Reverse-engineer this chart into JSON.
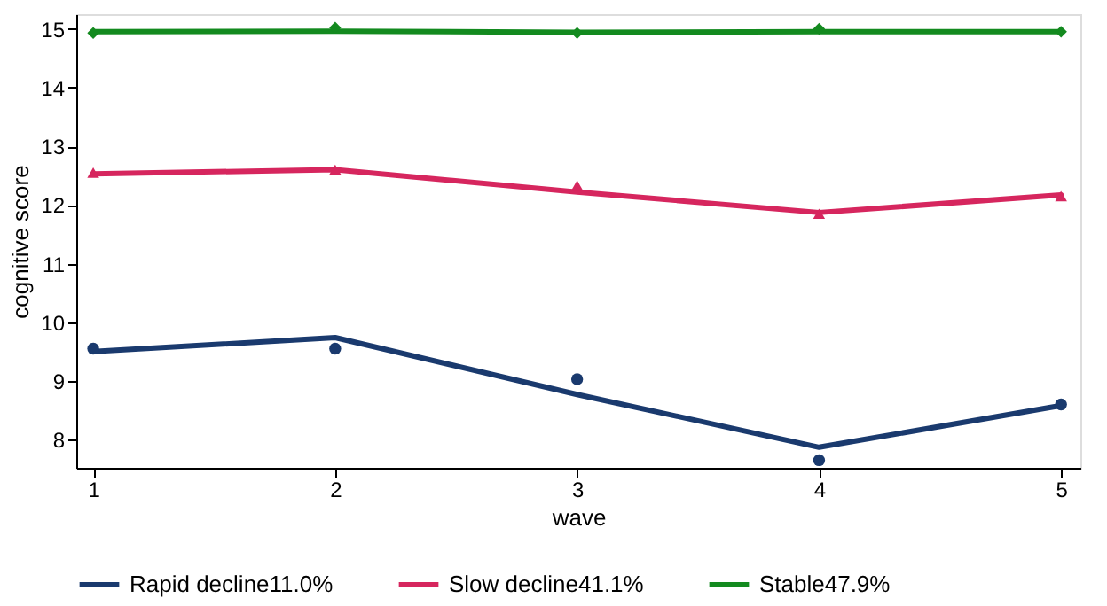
{
  "chart_data": {
    "type": "line",
    "xlabel": "wave",
    "ylabel": "cognitive score",
    "x": [
      1,
      2,
      3,
      4,
      5
    ],
    "xlim": [
      0.93,
      5.08
    ],
    "xticks": [
      1,
      2,
      3,
      4,
      5
    ],
    "ylim": [
      7.52,
      15.25
    ],
    "yticks": [
      8,
      9,
      10,
      11,
      12,
      13,
      14,
      15
    ],
    "grid": false,
    "legend": "bottom",
    "line_style": "solid",
    "series": [
      {
        "name": "Rapid decline11.0%",
        "color": "#1a3a6e",
        "values": [
          9.5,
          9.74,
          8.77,
          7.87,
          8.58
        ]
      },
      {
        "name": "Slow decline41.1%",
        "color": "#d6265e",
        "values": [
          12.53,
          12.6,
          12.22,
          11.87,
          12.17
        ]
      },
      {
        "name": "Stable47.9%",
        "color": "#138a1f",
        "values": [
          14.95,
          14.96,
          14.94,
          14.95,
          14.95
        ]
      },
      {
        "type": "scatter",
        "marker": "circle",
        "color": "#1a3a6e",
        "values": [
          9.55,
          9.55,
          9.03,
          7.65,
          8.6
        ]
      },
      {
        "type": "scatter",
        "marker": "triangle",
        "color": "#d6265e",
        "values": [
          12.55,
          12.6,
          12.33,
          11.85,
          12.15
        ]
      },
      {
        "type": "scatter",
        "marker": "diamond",
        "color": "#138a1f",
        "values": [
          14.93,
          15.02,
          14.93,
          15.0,
          14.95
        ]
      }
    ]
  }
}
